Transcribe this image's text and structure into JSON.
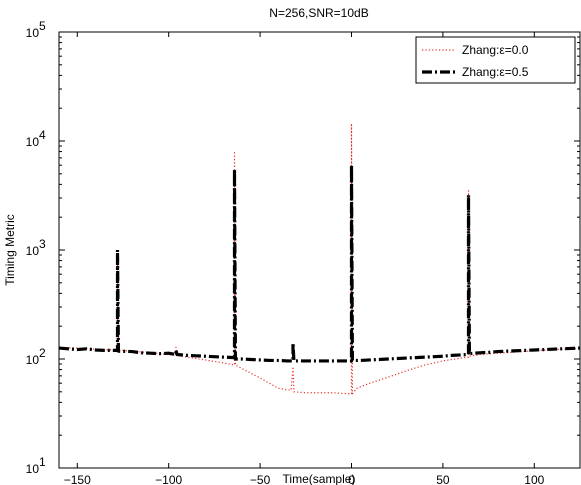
{
  "chart_data": {
    "type": "line",
    "title": "N=256,SNR=10dB",
    "xlabel": "Time(sample)",
    "ylabel": "Timing Metric",
    "xlim": [
      -160,
      125
    ],
    "ylim": [
      10,
      100000
    ],
    "yscale": "log",
    "x_ticks": [
      -150,
      -100,
      -50,
      0,
      50,
      100
    ],
    "y_ticks": [
      {
        "value": 10,
        "base": "10",
        "exp": "1"
      },
      {
        "value": 100,
        "base": "10",
        "exp": "2"
      },
      {
        "value": 1000,
        "base": "10",
        "exp": "3"
      },
      {
        "value": 10000,
        "base": "10",
        "exp": "4"
      },
      {
        "value": 100000,
        "base": "10",
        "exp": "5"
      }
    ],
    "grid": false,
    "legend_position": "top-right",
    "series": [
      {
        "name": "Zhang:ε=0.0",
        "color": "#e8302a",
        "style": "dotted",
        "points": [
          [
            -160,
            128
          ],
          [
            -150,
            126
          ],
          [
            -140,
            123
          ],
          [
            -130,
            121
          ],
          [
            -128,
            121
          ],
          [
            -128,
            800
          ],
          [
            -127.5,
            121
          ],
          [
            -120,
            118
          ],
          [
            -110,
            114
          ],
          [
            -100,
            110
          ],
          [
            -96,
            108
          ],
          [
            -96,
            128
          ],
          [
            -95.5,
            108
          ],
          [
            -90,
            104
          ],
          [
            -80,
            98
          ],
          [
            -70,
            92
          ],
          [
            -64,
            88
          ],
          [
            -64,
            7800
          ],
          [
            -63.5,
            88
          ],
          [
            -60,
            82
          ],
          [
            -55,
            74
          ],
          [
            -50,
            67
          ],
          [
            -45,
            60
          ],
          [
            -40,
            54
          ],
          [
            -35,
            52
          ],
          [
            -33,
            52
          ],
          [
            -32,
            85
          ],
          [
            -31.5,
            50
          ],
          [
            -25,
            49
          ],
          [
            -20,
            49
          ],
          [
            -10,
            49
          ],
          [
            -2,
            48
          ],
          [
            0,
            48
          ],
          [
            0,
            14500
          ],
          [
            0.5,
            48
          ],
          [
            3,
            54
          ],
          [
            10,
            60
          ],
          [
            20,
            68
          ],
          [
            30,
            78
          ],
          [
            40,
            88
          ],
          [
            50,
            96
          ],
          [
            60,
            102
          ],
          [
            64,
            104
          ],
          [
            64,
            3500
          ],
          [
            64.5,
            106
          ],
          [
            70,
            110
          ],
          [
            80,
            113
          ],
          [
            90,
            116
          ],
          [
            100,
            119
          ],
          [
            110,
            122
          ],
          [
            125,
            125
          ]
        ]
      },
      {
        "name": "Zhang:ε=0.5",
        "color": "#000000",
        "style": "dashdot",
        "points": [
          [
            -160,
            126
          ],
          [
            -155,
            124
          ],
          [
            -150,
            122
          ],
          [
            -145,
            124
          ],
          [
            -140,
            121
          ],
          [
            -135,
            120
          ],
          [
            -128,
            120
          ],
          [
            -128,
            1000
          ],
          [
            -127.5,
            118
          ],
          [
            -120,
            117
          ],
          [
            -115,
            114
          ],
          [
            -110,
            113
          ],
          [
            -105,
            112
          ],
          [
            -100,
            113
          ],
          [
            -96,
            110
          ],
          [
            -96,
            122
          ],
          [
            -95.5,
            110
          ],
          [
            -90,
            108
          ],
          [
            -85,
            107
          ],
          [
            -80,
            106
          ],
          [
            -75,
            105
          ],
          [
            -70,
            104
          ],
          [
            -64,
            103
          ],
          [
            -64,
            5500
          ],
          [
            -63.5,
            100
          ],
          [
            -60,
            100
          ],
          [
            -55,
            99
          ],
          [
            -50,
            98
          ],
          [
            -45,
            97
          ],
          [
            -40,
            97
          ],
          [
            -35,
            96
          ],
          [
            -32,
            96
          ],
          [
            -32,
            140
          ],
          [
            -31.5,
            96
          ],
          [
            -25,
            96
          ],
          [
            -20,
            96
          ],
          [
            -15,
            96
          ],
          [
            -10,
            96
          ],
          [
            -5,
            96
          ],
          [
            0,
            96
          ],
          [
            0,
            6000
          ],
          [
            0.5,
            97
          ],
          [
            5,
            97
          ],
          [
            10,
            98
          ],
          [
            15,
            99
          ],
          [
            20,
            100
          ],
          [
            25,
            101
          ],
          [
            30,
            102
          ],
          [
            35,
            103
          ],
          [
            40,
            104
          ],
          [
            45,
            105
          ],
          [
            50,
            106
          ],
          [
            55,
            108
          ],
          [
            60,
            109
          ],
          [
            64,
            110
          ],
          [
            64,
            3200
          ],
          [
            64.5,
            112
          ],
          [
            70,
            114
          ],
          [
            75,
            115
          ],
          [
            80,
            117
          ],
          [
            85,
            118
          ],
          [
            90,
            119
          ],
          [
            95,
            120
          ],
          [
            100,
            121
          ],
          [
            105,
            122
          ],
          [
            110,
            123
          ],
          [
            115,
            124
          ],
          [
            120,
            125
          ],
          [
            125,
            126
          ]
        ]
      }
    ]
  }
}
